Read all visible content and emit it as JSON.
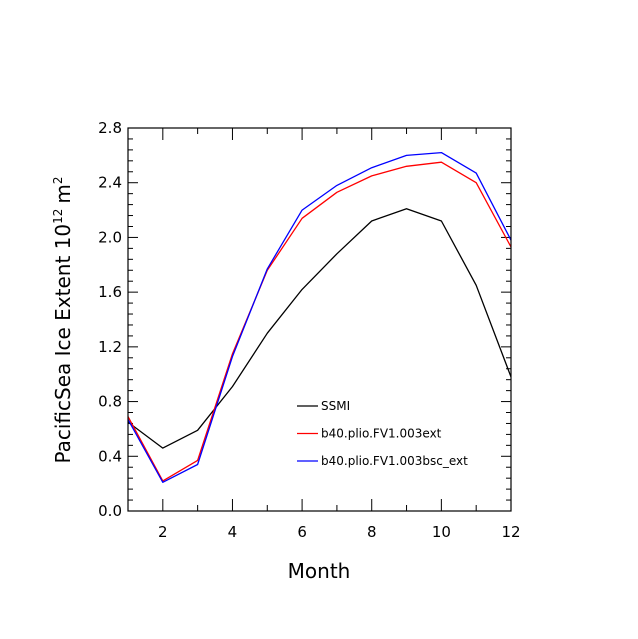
{
  "chart_data": {
    "type": "line",
    "title": "",
    "xlabel": "Month",
    "ylabel": {
      "main": "PacificSea Ice Extent 10",
      "exponent1": "12",
      "unit": "m",
      "exponent2": "2"
    },
    "xlim": [
      1,
      12
    ],
    "ylim": [
      0.0,
      2.8
    ],
    "x": [
      1,
      2,
      3,
      4,
      5,
      6,
      7,
      8,
      9,
      10,
      11,
      12
    ],
    "x_ticks": [
      2,
      4,
      6,
      8,
      10,
      12
    ],
    "x_tick_labels": [
      "2",
      "4",
      "6",
      "8",
      "10",
      "12"
    ],
    "y_ticks": [
      0.0,
      0.4,
      0.8,
      1.2,
      1.6,
      2.0,
      2.4,
      2.8
    ],
    "y_tick_labels": [
      "0.0",
      "0.4",
      "0.8",
      "1.2",
      "1.6",
      "2.0",
      "2.4",
      "2.8"
    ],
    "grid": false,
    "legend_position": "lower-center",
    "series": [
      {
        "name": "SSMI",
        "color": "#000000",
        "values": [
          0.65,
          0.46,
          0.59,
          0.91,
          1.3,
          1.62,
          1.88,
          2.12,
          2.21,
          2.12,
          1.65,
          0.98
        ]
      },
      {
        "name": "b40.plio.FV1.003ext",
        "color": "#ff0000",
        "values": [
          0.69,
          0.22,
          0.37,
          1.15,
          1.76,
          2.14,
          2.33,
          2.45,
          2.52,
          2.55,
          2.4,
          1.93
        ]
      },
      {
        "name": "b40.plio.FV1.003bsc_ext",
        "color": "#0000ff",
        "values": [
          0.67,
          0.21,
          0.34,
          1.13,
          1.77,
          2.2,
          2.38,
          2.51,
          2.6,
          2.62,
          2.47,
          1.98
        ]
      }
    ]
  }
}
